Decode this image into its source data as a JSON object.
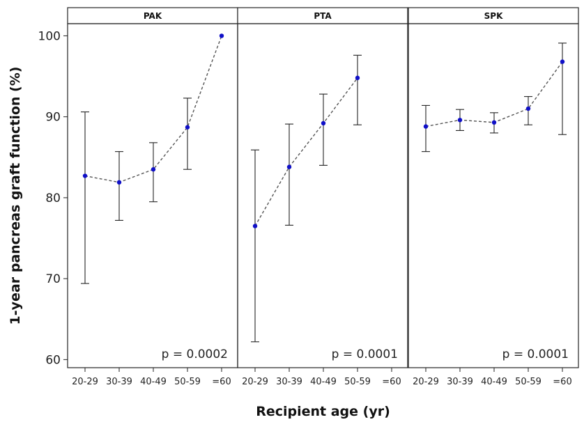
{
  "chart_data": {
    "type": "line",
    "xlabel": "Recipient age (yr)",
    "ylabel": "1-year pancreas graft function (%)",
    "ylim": [
      59,
      101.5
    ],
    "yticks": [
      60,
      70,
      80,
      90,
      100
    ],
    "categories": [
      "20-29",
      "30-39",
      "40-49",
      "50-59",
      "=60"
    ],
    "grid": false,
    "colors": {
      "point": "#1010c8",
      "line": "#555555",
      "error_bar": "#222222"
    },
    "panels": [
      {
        "title": "PAK",
        "p_value": "p = 0.0002",
        "values": [
          82.7,
          81.9,
          83.5,
          88.7,
          100
        ],
        "lower": [
          69.4,
          77.2,
          79.5,
          83.5,
          null
        ],
        "upper": [
          90.6,
          85.7,
          86.8,
          92.3,
          null
        ]
      },
      {
        "title": "PTA",
        "p_value": "p = 0.0001",
        "values": [
          76.5,
          83.8,
          89.2,
          94.8,
          null
        ],
        "lower": [
          62.2,
          76.6,
          84.0,
          89.0,
          null
        ],
        "upper": [
          85.9,
          89.1,
          92.8,
          97.6,
          null
        ]
      },
      {
        "title": "SPK",
        "p_value": "p = 0.0001",
        "values": [
          88.8,
          89.6,
          89.3,
          91.0,
          96.8
        ],
        "lower": [
          85.7,
          88.3,
          88.0,
          89.0,
          87.8
        ],
        "upper": [
          91.4,
          90.9,
          90.5,
          92.5,
          99.1
        ]
      }
    ]
  }
}
